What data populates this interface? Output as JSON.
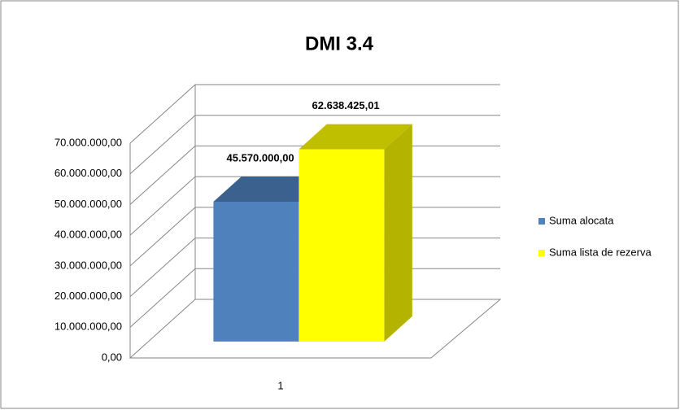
{
  "chart_data": {
    "type": "bar3d",
    "title": "DMI 3.4",
    "categories": [
      "1"
    ],
    "series": [
      {
        "name": "Suma alocata",
        "color": "#4f81bd",
        "values": [
          45570000
        ],
        "value_labels": [
          "45.570.000,00"
        ]
      },
      {
        "name": "Suma lista de rezerva",
        "color": "#ffff00",
        "values": [
          62638425.01
        ],
        "value_labels": [
          "62.638.425,01"
        ]
      }
    ],
    "ylim": [
      0,
      70000000
    ],
    "yticks": [
      {
        "value": 0,
        "label": "0,00"
      },
      {
        "value": 10000000,
        "label": "10.000.000,00"
      },
      {
        "value": 20000000,
        "label": "20.000.000,00"
      },
      {
        "value": 30000000,
        "label": "30.000.000,00"
      },
      {
        "value": 40000000,
        "label": "40.000.000,00"
      },
      {
        "value": 50000000,
        "label": "50.000.000,00"
      },
      {
        "value": 60000000,
        "label": "60.000.000,00"
      },
      {
        "value": 70000000,
        "label": "70.000.000,00"
      }
    ],
    "grid": true,
    "legend": "right"
  }
}
